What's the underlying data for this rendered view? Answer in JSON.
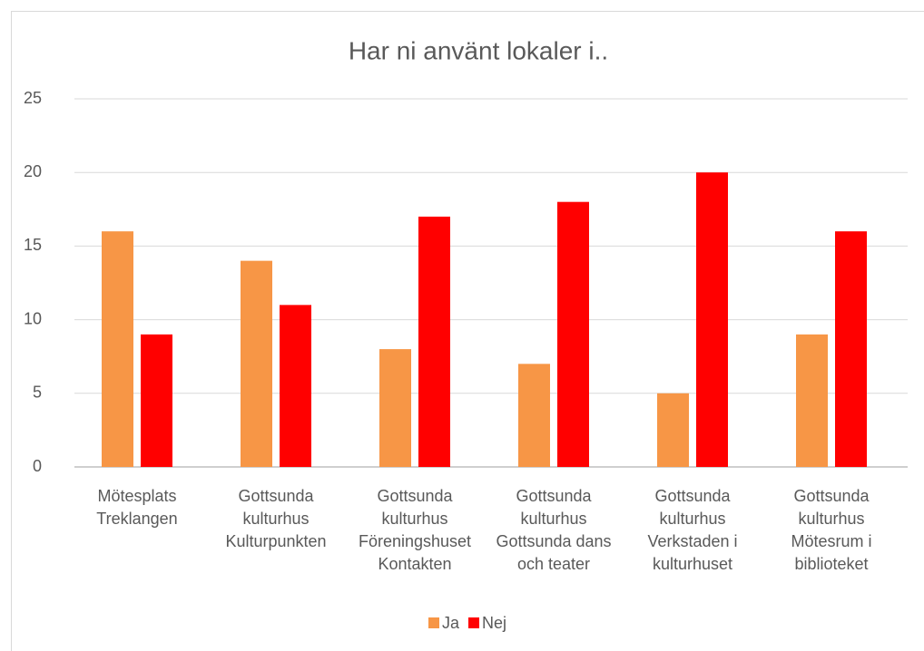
{
  "chart_data": {
    "type": "bar",
    "title": "Har ni använt lokaler i..",
    "categories": [
      "Mötesplats Treklangen",
      "Gottsunda kulturhus Kulturpunkten",
      "Gottsunda kulturhus Föreningshuset Kontakten",
      "Gottsunda kulturhus Gottsunda dans och teater",
      "Gottsunda kulturhus Verkstaden i kulturhuset",
      "Gottsunda kulturhus Mötesrum i biblioteket"
    ],
    "series": [
      {
        "name": "Ja",
        "color": "#f79646",
        "values": [
          16,
          14,
          8,
          7,
          5,
          9
        ]
      },
      {
        "name": "Nej",
        "color": "#ff0000",
        "values": [
          9,
          11,
          17,
          18,
          20,
          16
        ]
      }
    ],
    "ylim": [
      0,
      25
    ],
    "yticks": [
      0,
      5,
      10,
      15,
      20,
      25
    ],
    "grid": true,
    "legend": "bottom"
  }
}
